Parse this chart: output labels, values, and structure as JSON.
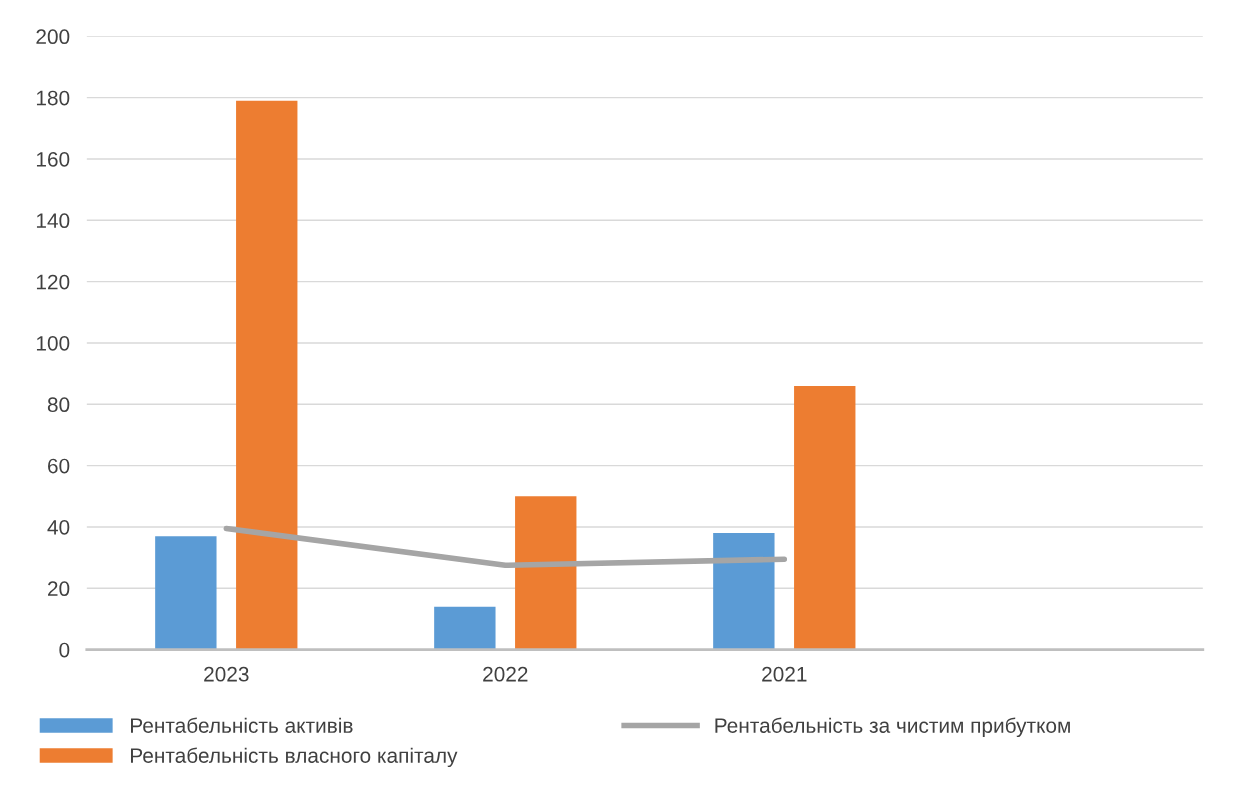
{
  "chart_data": {
    "type": "bar",
    "categories": [
      "2023",
      "2022",
      "2021",
      null
    ],
    "series": [
      {
        "name": "Рентабельність активів",
        "color": "#5b9bd5",
        "values": [
          37,
          14,
          38,
          null
        ]
      },
      {
        "name": "Рентабельність власного капіталу",
        "color": "#ed7d31",
        "values": [
          179,
          50,
          86,
          null
        ]
      },
      {
        "name": "Рентабельність за чистим прибутком",
        "color": "#a5a5a5",
        "type": "line",
        "values": [
          39.5,
          27.5,
          29.5,
          null
        ]
      }
    ],
    "ylim": [
      0,
      200
    ],
    "yticks": [
      0,
      20,
      40,
      60,
      80,
      100,
      120,
      140,
      160,
      180,
      200
    ],
    "grid": "y",
    "legend": "bottom",
    "marker": "none"
  }
}
